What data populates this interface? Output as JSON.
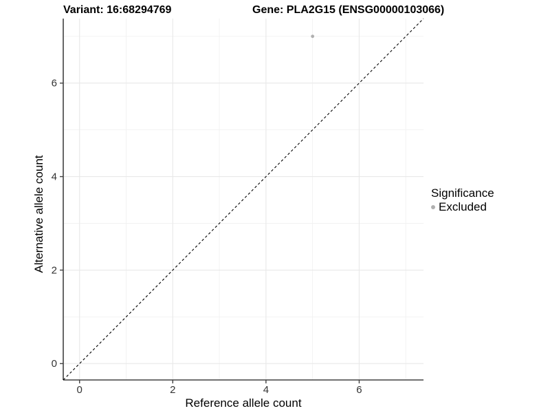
{
  "header": {
    "variant_title": "Variant: 16:68294769",
    "gene_title": "Gene: PLA2G15 (ENSG00000103066)"
  },
  "legend": {
    "title": "Significance",
    "entries": [
      {
        "label": "Excluded",
        "color": "#b0b0b0"
      }
    ],
    "position": "right"
  },
  "colors": {
    "background": "#ffffff",
    "point_excluded": "#b0b0b0",
    "grid_major": "#e8e8e8",
    "grid_minor": "#f1f1f1",
    "axis": "#404040",
    "tick_label": "#333333",
    "reference_line": "#000000"
  },
  "chart_data": {
    "type": "scatter",
    "title": "Variant: 16:68294769    Gene: PLA2G15 (ENSG00000103066)",
    "xlabel": "Reference allele count",
    "ylabel": "Alternative allele count",
    "points": [
      {
        "x": 5,
        "y": 7,
        "series": "Excluded"
      }
    ],
    "series": [
      {
        "name": "Excluded",
        "color": "#b0b0b0"
      }
    ],
    "reference_line": {
      "equation": "y = x",
      "style": "dashed",
      "color": "#000000",
      "from": [
        -0.35,
        -0.35
      ],
      "to": [
        7.38,
        7.38
      ]
    },
    "xticks": [
      0,
      2,
      4,
      6
    ],
    "yticks": [
      0,
      2,
      4,
      6
    ],
    "xminor": [
      1,
      3,
      5,
      7
    ],
    "yminor": [
      1,
      3,
      5,
      7
    ],
    "xlim": [
      -0.35,
      7.38
    ],
    "ylim": [
      -0.35,
      7.38
    ],
    "grid": true,
    "legend_position": "right"
  }
}
